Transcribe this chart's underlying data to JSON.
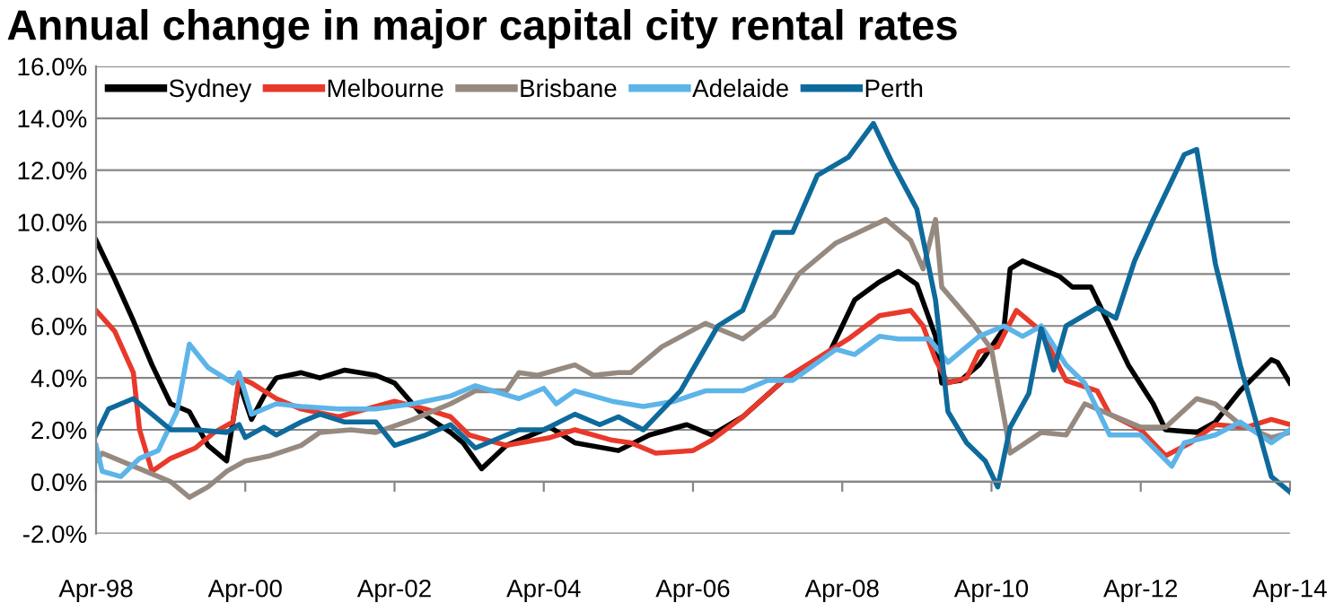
{
  "chart_data": {
    "type": "line",
    "title": "Annual change in major capital city rental rates",
    "xlim": [
      "1998-04",
      "2014-04"
    ],
    "xticks": [
      {
        "value": "1998-04",
        "label": "Apr-98"
      },
      {
        "value": "2000-04",
        "label": "Apr-00"
      },
      {
        "value": "2002-04",
        "label": "Apr-02"
      },
      {
        "value": "2004-04",
        "label": "Apr-04"
      },
      {
        "value": "2006-04",
        "label": "Apr-06"
      },
      {
        "value": "2008-04",
        "label": "Apr-08"
      },
      {
        "value": "2010-04",
        "label": "Apr-10"
      },
      {
        "value": "2012-04",
        "label": "Apr-12"
      },
      {
        "value": "2014-04",
        "label": "Apr-14"
      }
    ],
    "ylim": [
      -2,
      16
    ],
    "yticks": [
      {
        "value": -2,
        "label": "-2.0%"
      },
      {
        "value": 0,
        "label": "0.0%"
      },
      {
        "value": 2,
        "label": "2.0%"
      },
      {
        "value": 4,
        "label": "4.0%"
      },
      {
        "value": 6,
        "label": "6.0%"
      },
      {
        "value": 8,
        "label": "8.0%"
      },
      {
        "value": 10,
        "label": "10.0%"
      },
      {
        "value": 12,
        "label": "12.0%"
      },
      {
        "value": 14,
        "label": "14.0%"
      },
      {
        "value": 16,
        "label": "16.0%"
      }
    ],
    "grid": "y",
    "legend": "top left",
    "marker": "none",
    "line_style": "solid",
    "series": [
      {
        "name": "Sydney",
        "color": "#000000",
        "x": [
          "1998-04",
          "1998-07",
          "1998-10",
          "1999-01",
          "1999-04",
          "1999-07",
          "1999-10",
          "2000-01",
          "2000-03",
          "2000-05",
          "2000-07",
          "2000-09",
          "2001-01",
          "2001-04",
          "2001-08",
          "2002-01",
          "2002-04",
          "2002-08",
          "2003-01",
          "2003-03",
          "2003-06",
          "2003-10",
          "2004-05",
          "2004-09",
          "2005-04",
          "2005-09",
          "2006-03",
          "2006-07",
          "2006-12",
          "2007-07",
          "2008-02",
          "2008-06",
          "2008-10",
          "2009-01",
          "2009-04",
          "2009-07",
          "2009-08",
          "2009-11",
          "2010-02",
          "2010-06",
          "2010-07",
          "2010-09",
          "2010-12",
          "2011-03",
          "2011-05",
          "2011-08",
          "2011-11",
          "2012-02",
          "2012-06",
          "2012-08",
          "2013-01",
          "2013-04",
          "2013-08",
          "2014-01",
          "2014-02",
          "2014-04"
        ],
        "values": [
          9.3,
          7.8,
          6.2,
          4.5,
          3.0,
          2.7,
          1.4,
          0.8,
          3.8,
          2.4,
          3.3,
          4.0,
          4.2,
          4.0,
          4.3,
          4.1,
          3.8,
          2.7,
          1.9,
          1.5,
          0.5,
          1.4,
          2.1,
          1.5,
          1.2,
          1.8,
          2.2,
          1.8,
          2.5,
          4.0,
          5.0,
          7.0,
          7.7,
          8.1,
          7.6,
          5.6,
          3.8,
          3.9,
          4.5,
          5.9,
          8.2,
          8.5,
          8.2,
          7.9,
          7.5,
          7.5,
          6.0,
          4.5,
          3.0,
          2.0,
          1.9,
          2.3,
          3.5,
          4.7,
          4.6,
          3.8
        ]
      },
      {
        "name": "Melbourne",
        "color": "#e8392a",
        "x": [
          "1998-04",
          "1998-07",
          "1998-10",
          "1998-11",
          "1999-01",
          "1999-04",
          "1999-08",
          "1999-11",
          "2000-02",
          "2000-03",
          "2000-05",
          "2000-09",
          "2001-01",
          "2001-07",
          "2002-01",
          "2002-04",
          "2002-09",
          "2003-01",
          "2003-04",
          "2003-07",
          "2003-10",
          "2004-05",
          "2004-09",
          "2005-03",
          "2005-06",
          "2005-10",
          "2006-04",
          "2006-07",
          "2006-12",
          "2007-07",
          "2008-05",
          "2008-10",
          "2009-03",
          "2009-05",
          "2009-07",
          "2009-09",
          "2009-12",
          "2010-02",
          "2010-05",
          "2010-08",
          "2010-12",
          "2011-04",
          "2011-09",
          "2011-11",
          "2012-04",
          "2012-08",
          "2012-12",
          "2013-04",
          "2013-09",
          "2014-01",
          "2014-04"
        ],
        "values": [
          6.6,
          5.8,
          4.2,
          2.0,
          0.4,
          0.9,
          1.3,
          1.9,
          2.3,
          4.0,
          3.8,
          3.2,
          2.8,
          2.5,
          2.9,
          3.1,
          2.8,
          2.5,
          1.8,
          1.6,
          1.4,
          1.7,
          2.0,
          1.6,
          1.5,
          1.1,
          1.2,
          1.6,
          2.5,
          4.0,
          5.5,
          6.4,
          6.6,
          6.0,
          4.7,
          3.8,
          4.0,
          5.0,
          5.2,
          6.6,
          5.8,
          3.9,
          3.5,
          2.6,
          2.0,
          1.0,
          1.5,
          2.2,
          2.1,
          2.4,
          2.2
        ]
      },
      {
        "name": "Brisbane",
        "color": "#968a80",
        "x": [
          "1998-04",
          "1998-05",
          "1998-09",
          "1999-01",
          "1999-04",
          "1999-07",
          "1999-10",
          "2000-01",
          "2000-04",
          "2000-08",
          "2001-01",
          "2001-04",
          "2001-09",
          "2002-01",
          "2002-07",
          "2003-01",
          "2003-05",
          "2003-10",
          "2003-12",
          "2004-03",
          "2004-09",
          "2004-12",
          "2005-04",
          "2005-06",
          "2005-11",
          "2006-06",
          "2006-12",
          "2007-05",
          "2007-09",
          "2008-03",
          "2008-11",
          "2009-03",
          "2009-05",
          "2009-07",
          "2009-08",
          "2010-01",
          "2010-04",
          "2010-06",
          "2010-07",
          "2010-12",
          "2011-04",
          "2011-07",
          "2011-11",
          "2012-04",
          "2012-08",
          "2013-01",
          "2013-04",
          "2013-08",
          "2014-01",
          "2014-04"
        ],
        "values": [
          0.8,
          1.1,
          0.7,
          0.3,
          0.0,
          -0.6,
          -0.2,
          0.4,
          0.8,
          1.0,
          1.4,
          1.9,
          2.0,
          1.9,
          2.4,
          3.0,
          3.5,
          3.5,
          4.2,
          4.1,
          4.5,
          4.1,
          4.2,
          4.2,
          5.2,
          6.1,
          5.5,
          6.4,
          8.0,
          9.2,
          10.1,
          9.3,
          8.2,
          10.1,
          7.5,
          6.1,
          5.1,
          2.5,
          1.1,
          1.9,
          1.8,
          3.0,
          2.6,
          2.1,
          2.1,
          3.2,
          3.0,
          2.2,
          1.7,
          1.9
        ]
      },
      {
        "name": "Adelaide",
        "color": "#5db4e8",
        "x": [
          "1998-04",
          "1998-05",
          "1998-08",
          "1998-11",
          "1999-02",
          "1999-05",
          "1999-07",
          "1999-10",
          "2000-02",
          "2000-03",
          "2000-05",
          "2000-09",
          "2001-01",
          "2001-07",
          "2002-01",
          "2002-07",
          "2003-01",
          "2003-05",
          "2003-12",
          "2004-04",
          "2004-06",
          "2004-09",
          "2005-03",
          "2005-08",
          "2006-01",
          "2006-06",
          "2006-12",
          "2007-04",
          "2007-08",
          "2008-03",
          "2008-06",
          "2008-10",
          "2009-01",
          "2009-06",
          "2009-09",
          "2010-02",
          "2010-06",
          "2010-09",
          "2010-12",
          "2011-04",
          "2011-07",
          "2011-11",
          "2012-04",
          "2012-09",
          "2012-11",
          "2013-04",
          "2013-08",
          "2014-01",
          "2014-04"
        ],
        "values": [
          1.4,
          0.4,
          0.2,
          0.9,
          1.2,
          2.7,
          5.3,
          4.4,
          3.8,
          4.2,
          2.6,
          3.0,
          2.9,
          2.8,
          2.8,
          3.0,
          3.3,
          3.7,
          3.2,
          3.6,
          3.0,
          3.5,
          3.1,
          2.9,
          3.1,
          3.5,
          3.5,
          3.9,
          3.9,
          5.1,
          4.9,
          5.6,
          5.5,
          5.5,
          4.6,
          5.6,
          6.0,
          5.6,
          6.0,
          4.5,
          3.8,
          1.8,
          1.8,
          0.6,
          1.5,
          1.8,
          2.3,
          1.5,
          2.0
        ]
      },
      {
        "name": "Perth",
        "color": "#0f6a9c",
        "x": [
          "1998-04",
          "1998-06",
          "1998-08",
          "1998-10",
          "1999-01",
          "1999-04",
          "1999-08",
          "2000-01",
          "2000-03",
          "2000-04",
          "2000-07",
          "2000-09",
          "2001-01",
          "2001-04",
          "2001-08",
          "2002-01",
          "2002-04",
          "2002-09",
          "2003-01",
          "2003-05",
          "2003-12",
          "2004-04",
          "2004-09",
          "2005-01",
          "2005-04",
          "2005-08",
          "2006-02",
          "2006-08",
          "2006-12",
          "2007-05",
          "2007-08",
          "2007-12",
          "2008-05",
          "2008-09",
          "2008-12",
          "2009-04",
          "2009-07",
          "2009-09",
          "2009-12",
          "2010-03",
          "2010-05",
          "2010-07",
          "2010-10",
          "2010-12",
          "2011-02",
          "2011-04",
          "2011-09",
          "2011-12",
          "2012-03",
          "2012-06",
          "2012-09",
          "2012-11",
          "2013-01",
          "2013-04",
          "2013-08",
          "2014-01",
          "2014-04"
        ],
        "values": [
          1.8,
          2.8,
          3.0,
          3.2,
          2.6,
          2.0,
          2.0,
          1.9,
          2.2,
          1.7,
          2.1,
          1.8,
          2.3,
          2.6,
          2.3,
          2.3,
          1.4,
          1.8,
          2.2,
          1.3,
          2.0,
          2.0,
          2.6,
          2.2,
          2.5,
          2.0,
          3.5,
          6.0,
          6.6,
          9.6,
          9.6,
          11.8,
          12.5,
          13.8,
          12.3,
          10.5,
          7.0,
          2.7,
          1.5,
          0.8,
          -0.2,
          2.1,
          3.4,
          5.9,
          4.3,
          6.0,
          6.7,
          6.3,
          8.5,
          10.1,
          11.6,
          12.6,
          12.8,
          8.4,
          4.5,
          0.2,
          -0.4
        ]
      }
    ]
  }
}
